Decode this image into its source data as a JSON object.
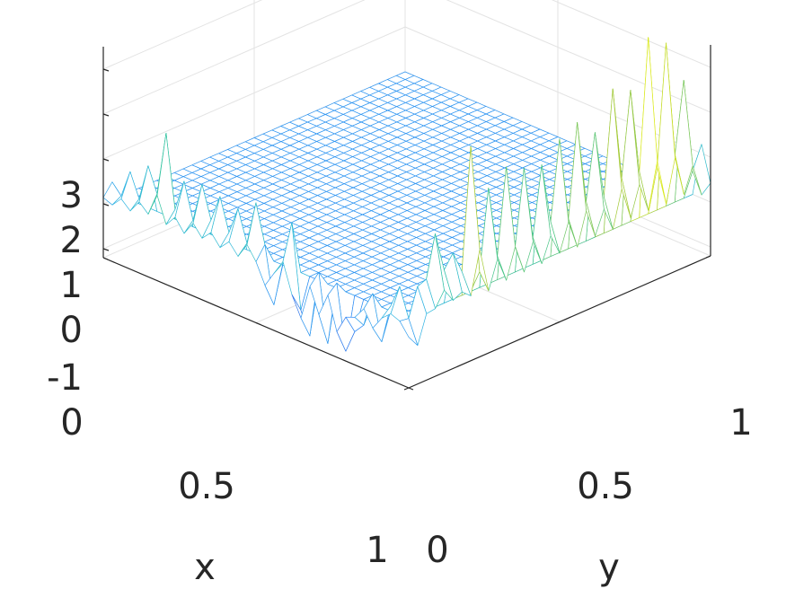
{
  "chart_data": {
    "type": "mesh",
    "title": "",
    "xlabel": "x",
    "ylabel": "y",
    "zlabel": "",
    "xlim": [
      0,
      1
    ],
    "ylim": [
      0,
      1
    ],
    "zlim": [
      -1.2,
      3.5
    ],
    "x_ticks": [
      "0",
      "0.5",
      "1"
    ],
    "y_ticks": [
      "0",
      "0.5",
      "1"
    ],
    "z_ticks": [
      "-1",
      "0",
      "1",
      "2",
      "3"
    ],
    "grid": true,
    "colormap": [
      "#3e26a8",
      "#2e87f7",
      "#30b8e0",
      "#35c49a",
      "#a3c936",
      "#f9fb0e"
    ],
    "surface": {
      "description_values": "oscillating spikes along the edges x=0 (y from 0 to 1) and y=0 (x from 0 to 1); flat zero elsewhere",
      "edge_x0_peaks": [
        0.3,
        1.3,
        0.8,
        2.5,
        1.8,
        2.6,
        1.2,
        2.0,
        3.4,
        1.5,
        2.3,
        2.0,
        2.6,
        2.1,
        2.4,
        2.2,
        2.3,
        2.7,
        2.4,
        2.9,
        3.0,
        2.5,
        2.8,
        3.3,
        3.5,
        3.1,
        3.4,
        4.1,
        3.2,
        3.8,
        3.5,
        2.8,
        2.0,
        1.2
      ],
      "edge_y0_peaks": [
        -0.5,
        -0.8,
        0.8,
        -0.6,
        1.1,
        -0.4,
        -1.8,
        0.8,
        -1.2,
        1.0,
        -1.9,
        1.2,
        0.6,
        -0.8,
        1.3,
        0.9,
        1.0,
        1.1,
        1.4,
        1.2,
        0.9,
        1.1,
        2.0,
        1.6,
        1.1,
        0.8,
        0.5,
        0.4
      ]
    }
  }
}
